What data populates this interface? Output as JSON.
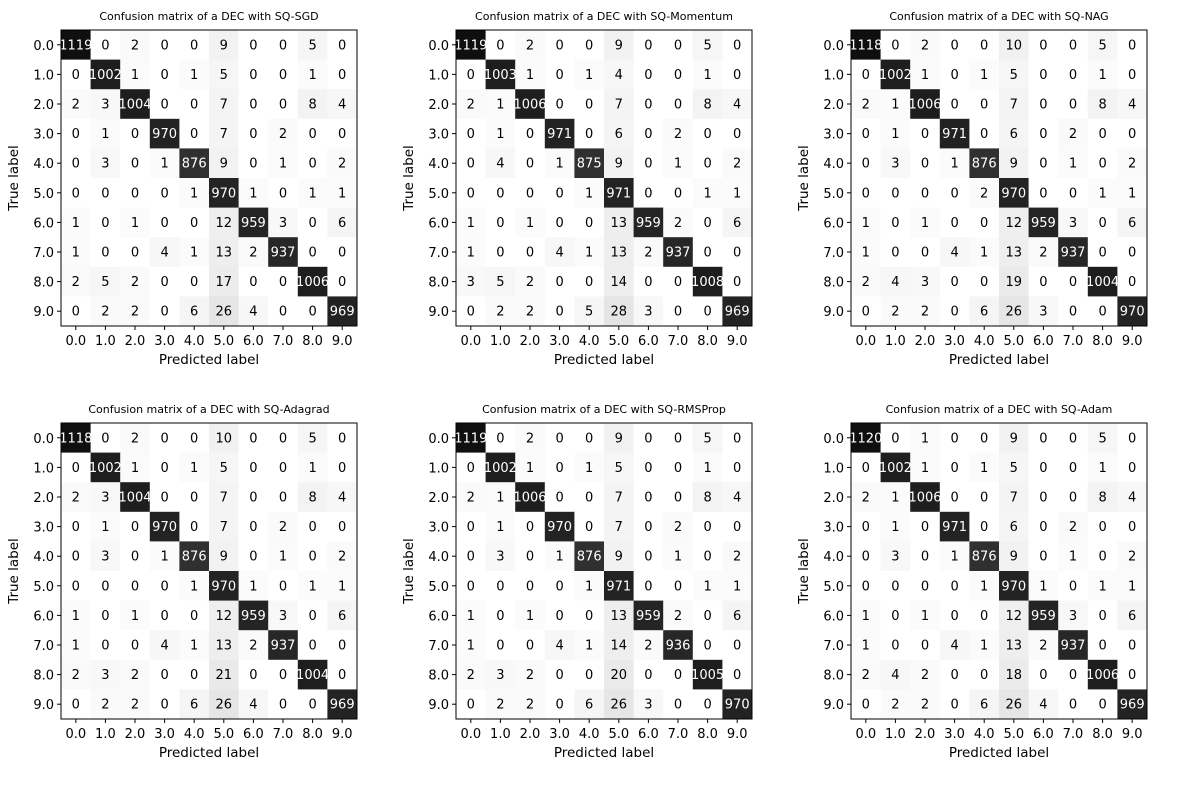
{
  "figure": {
    "xlabel": "Predicted label",
    "ylabel": "True label",
    "tick_labels": [
      "0.0",
      "1.0",
      "2.0",
      "3.0",
      "4.0",
      "5.0",
      "6.0",
      "7.0",
      "8.0",
      "9.0"
    ]
  },
  "chart_data": [
    {
      "type": "heatmap",
      "title": "Confusion matrix of a DEC with SQ-SGD",
      "xlabel": "Predicted label",
      "ylabel": "True label",
      "categories": [
        "0.0",
        "1.0",
        "2.0",
        "3.0",
        "4.0",
        "5.0",
        "6.0",
        "7.0",
        "8.0",
        "9.0"
      ],
      "matrix": [
        [
          1119,
          0,
          2,
          0,
          0,
          9,
          0,
          0,
          5,
          0
        ],
        [
          0,
          1002,
          1,
          0,
          1,
          5,
          0,
          0,
          1,
          0
        ],
        [
          2,
          3,
          1004,
          0,
          0,
          7,
          0,
          0,
          8,
          4
        ],
        [
          0,
          1,
          0,
          970,
          0,
          7,
          0,
          2,
          0,
          0
        ],
        [
          0,
          3,
          0,
          1,
          876,
          9,
          0,
          1,
          0,
          2
        ],
        [
          0,
          0,
          0,
          0,
          1,
          970,
          1,
          0,
          1,
          1
        ],
        [
          1,
          0,
          1,
          0,
          0,
          12,
          959,
          3,
          0,
          6
        ],
        [
          1,
          0,
          0,
          4,
          1,
          13,
          2,
          937,
          0,
          0
        ],
        [
          2,
          5,
          2,
          0,
          0,
          17,
          0,
          0,
          1006,
          0
        ],
        [
          0,
          2,
          2,
          0,
          6,
          26,
          4,
          0,
          0,
          969
        ]
      ]
    },
    {
      "type": "heatmap",
      "title": "Confusion matrix of a DEC with SQ-Momentum",
      "xlabel": "Predicted label",
      "ylabel": "True label",
      "categories": [
        "0.0",
        "1.0",
        "2.0",
        "3.0",
        "4.0",
        "5.0",
        "6.0",
        "7.0",
        "8.0",
        "9.0"
      ],
      "matrix": [
        [
          1119,
          0,
          2,
          0,
          0,
          9,
          0,
          0,
          5,
          0
        ],
        [
          0,
          1003,
          1,
          0,
          1,
          4,
          0,
          0,
          1,
          0
        ],
        [
          2,
          1,
          1006,
          0,
          0,
          7,
          0,
          0,
          8,
          4
        ],
        [
          0,
          1,
          0,
          971,
          0,
          6,
          0,
          2,
          0,
          0
        ],
        [
          0,
          4,
          0,
          1,
          875,
          9,
          0,
          1,
          0,
          2
        ],
        [
          0,
          0,
          0,
          0,
          1,
          971,
          0,
          0,
          1,
          1
        ],
        [
          1,
          0,
          1,
          0,
          0,
          13,
          959,
          2,
          0,
          6
        ],
        [
          1,
          0,
          0,
          4,
          1,
          13,
          2,
          937,
          0,
          0
        ],
        [
          3,
          5,
          2,
          0,
          0,
          14,
          0,
          0,
          1008,
          0
        ],
        [
          0,
          2,
          2,
          0,
          5,
          28,
          3,
          0,
          0,
          969
        ]
      ]
    },
    {
      "type": "heatmap",
      "title": "Confusion matrix of a DEC with SQ-NAG",
      "xlabel": "Predicted label",
      "ylabel": "True label",
      "categories": [
        "0.0",
        "1.0",
        "2.0",
        "3.0",
        "4.0",
        "5.0",
        "6.0",
        "7.0",
        "8.0",
        "9.0"
      ],
      "matrix": [
        [
          1118,
          0,
          2,
          0,
          0,
          10,
          0,
          0,
          5,
          0
        ],
        [
          0,
          1002,
          1,
          0,
          1,
          5,
          0,
          0,
          1,
          0
        ],
        [
          2,
          1,
          1006,
          0,
          0,
          7,
          0,
          0,
          8,
          4
        ],
        [
          0,
          1,
          0,
          971,
          0,
          6,
          0,
          2,
          0,
          0
        ],
        [
          0,
          3,
          0,
          1,
          876,
          9,
          0,
          1,
          0,
          2
        ],
        [
          0,
          0,
          0,
          0,
          2,
          970,
          0,
          0,
          1,
          1
        ],
        [
          1,
          0,
          1,
          0,
          0,
          12,
          959,
          3,
          0,
          6
        ],
        [
          1,
          0,
          0,
          4,
          1,
          13,
          2,
          937,
          0,
          0
        ],
        [
          2,
          4,
          3,
          0,
          0,
          19,
          0,
          0,
          1004,
          0
        ],
        [
          0,
          2,
          2,
          0,
          6,
          26,
          3,
          0,
          0,
          970
        ]
      ]
    },
    {
      "type": "heatmap",
      "title": "Confusion matrix of a DEC with SQ-Adagrad",
      "xlabel": "Predicted label",
      "ylabel": "True label",
      "categories": [
        "0.0",
        "1.0",
        "2.0",
        "3.0",
        "4.0",
        "5.0",
        "6.0",
        "7.0",
        "8.0",
        "9.0"
      ],
      "matrix": [
        [
          1118,
          0,
          2,
          0,
          0,
          10,
          0,
          0,
          5,
          0
        ],
        [
          0,
          1002,
          1,
          0,
          1,
          5,
          0,
          0,
          1,
          0
        ],
        [
          2,
          3,
          1004,
          0,
          0,
          7,
          0,
          0,
          8,
          4
        ],
        [
          0,
          1,
          0,
          970,
          0,
          7,
          0,
          2,
          0,
          0
        ],
        [
          0,
          3,
          0,
          1,
          876,
          9,
          0,
          1,
          0,
          2
        ],
        [
          0,
          0,
          0,
          0,
          1,
          970,
          1,
          0,
          1,
          1
        ],
        [
          1,
          0,
          1,
          0,
          0,
          12,
          959,
          3,
          0,
          6
        ],
        [
          1,
          0,
          0,
          4,
          1,
          13,
          2,
          937,
          0,
          0
        ],
        [
          2,
          3,
          2,
          0,
          0,
          21,
          0,
          0,
          1004,
          0
        ],
        [
          0,
          2,
          2,
          0,
          6,
          26,
          4,
          0,
          0,
          969
        ]
      ]
    },
    {
      "type": "heatmap",
      "title": "Confusion matrix of a DEC with SQ-RMSProp",
      "xlabel": "Predicted label",
      "ylabel": "True label",
      "categories": [
        "0.0",
        "1.0",
        "2.0",
        "3.0",
        "4.0",
        "5.0",
        "6.0",
        "7.0",
        "8.0",
        "9.0"
      ],
      "matrix": [
        [
          1119,
          0,
          2,
          0,
          0,
          9,
          0,
          0,
          5,
          0
        ],
        [
          0,
          1002,
          1,
          0,
          1,
          5,
          0,
          0,
          1,
          0
        ],
        [
          2,
          1,
          1006,
          0,
          0,
          7,
          0,
          0,
          8,
          4
        ],
        [
          0,
          1,
          0,
          970,
          0,
          7,
          0,
          2,
          0,
          0
        ],
        [
          0,
          3,
          0,
          1,
          876,
          9,
          0,
          1,
          0,
          2
        ],
        [
          0,
          0,
          0,
          0,
          1,
          971,
          0,
          0,
          1,
          1
        ],
        [
          1,
          0,
          1,
          0,
          0,
          13,
          959,
          2,
          0,
          6
        ],
        [
          1,
          0,
          0,
          4,
          1,
          14,
          2,
          936,
          0,
          0
        ],
        [
          2,
          3,
          2,
          0,
          0,
          20,
          0,
          0,
          1005,
          0
        ],
        [
          0,
          2,
          2,
          0,
          6,
          26,
          3,
          0,
          0,
          970
        ]
      ]
    },
    {
      "type": "heatmap",
      "title": "Confusion matrix of a DEC with SQ-Adam",
      "xlabel": "Predicted label",
      "ylabel": "True label",
      "categories": [
        "0.0",
        "1.0",
        "2.0",
        "3.0",
        "4.0",
        "5.0",
        "6.0",
        "7.0",
        "8.0",
        "9.0"
      ],
      "matrix": [
        [
          1120,
          0,
          1,
          0,
          0,
          9,
          0,
          0,
          5,
          0
        ],
        [
          0,
          1002,
          1,
          0,
          1,
          5,
          0,
          0,
          1,
          0
        ],
        [
          2,
          1,
          1006,
          0,
          0,
          7,
          0,
          0,
          8,
          4
        ],
        [
          0,
          1,
          0,
          971,
          0,
          6,
          0,
          2,
          0,
          0
        ],
        [
          0,
          3,
          0,
          1,
          876,
          9,
          0,
          1,
          0,
          2
        ],
        [
          0,
          0,
          0,
          0,
          1,
          970,
          1,
          0,
          1,
          1
        ],
        [
          1,
          0,
          1,
          0,
          0,
          12,
          959,
          3,
          0,
          6
        ],
        [
          1,
          0,
          0,
          4,
          1,
          13,
          2,
          937,
          0,
          0
        ],
        [
          2,
          4,
          2,
          0,
          0,
          18,
          0,
          0,
          1006,
          0
        ],
        [
          0,
          2,
          2,
          0,
          6,
          26,
          4,
          0,
          0,
          969
        ]
      ]
    }
  ]
}
